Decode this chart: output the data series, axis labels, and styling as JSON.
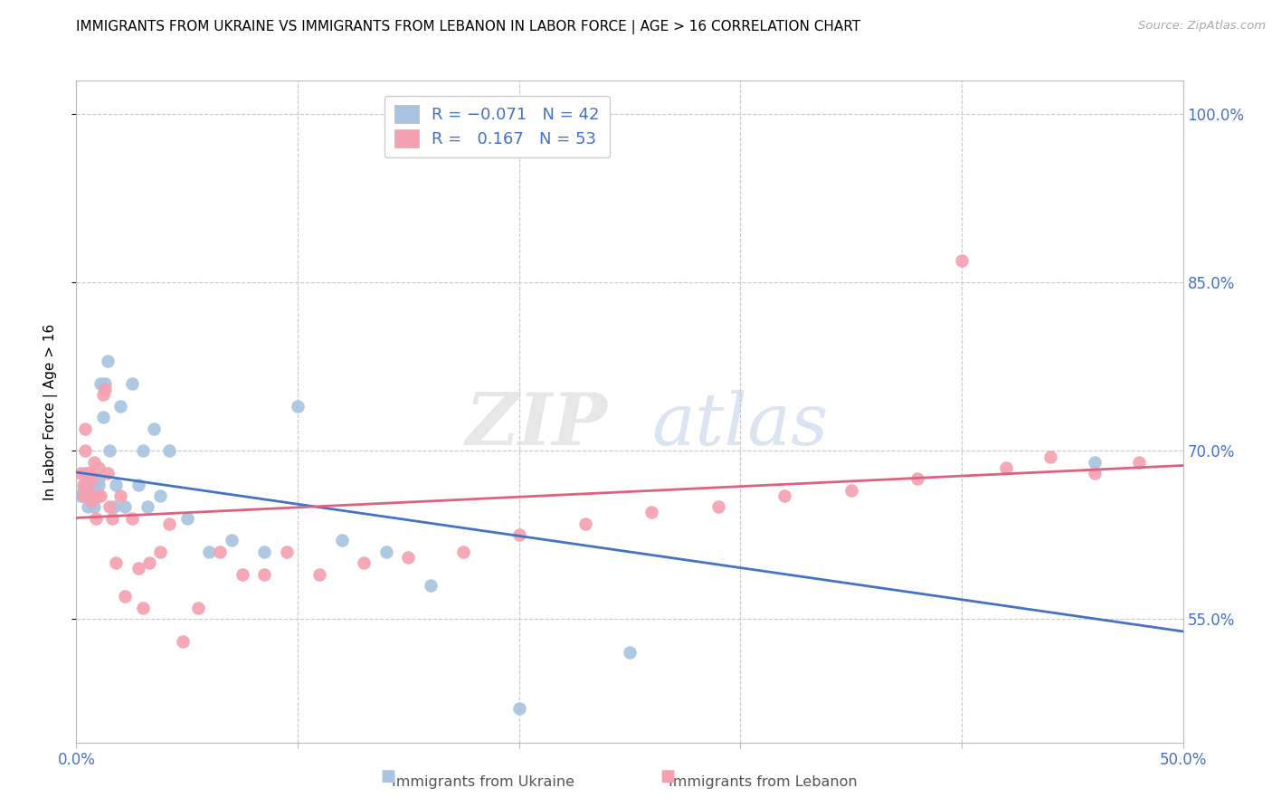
{
  "title": "IMMIGRANTS FROM UKRAINE VS IMMIGRANTS FROM LEBANON IN LABOR FORCE | AGE > 16 CORRELATION CHART",
  "source": "Source: ZipAtlas.com",
  "ylabel": "In Labor Force | Age > 16",
  "x_min": 0.0,
  "x_max": 0.5,
  "y_min": 0.44,
  "y_max": 1.03,
  "x_ticks": [
    0.0,
    0.1,
    0.2,
    0.3,
    0.4,
    0.5
  ],
  "x_tick_labels": [
    "0.0%",
    "",
    "",
    "",
    "",
    "50.0%"
  ],
  "y_ticks": [
    0.55,
    0.7,
    0.85,
    1.0
  ],
  "y_tick_labels": [
    "55.0%",
    "70.0%",
    "85.0%",
    "100.0%"
  ],
  "ukraine_r": -0.071,
  "ukraine_n": 42,
  "lebanon_r": 0.167,
  "lebanon_n": 53,
  "ukraine_color": "#a8c4e0",
  "lebanon_color": "#f4a0b0",
  "ukraine_line_color": "#4472c4",
  "lebanon_line_color": "#e06080",
  "watermark_zip": "ZIP",
  "watermark_atlas": "atlas",
  "background_color": "#ffffff",
  "grid_color": "#c8c8c8",
  "axis_color": "#bbbbbb",
  "tick_label_color": "#4472c4",
  "ukraine_x": [
    0.002,
    0.003,
    0.004,
    0.004,
    0.005,
    0.005,
    0.006,
    0.006,
    0.007,
    0.007,
    0.008,
    0.008,
    0.009,
    0.01,
    0.01,
    0.011,
    0.012,
    0.013,
    0.014,
    0.015,
    0.017,
    0.018,
    0.02,
    0.022,
    0.025,
    0.028,
    0.03,
    0.032,
    0.035,
    0.038,
    0.042,
    0.05,
    0.06,
    0.07,
    0.085,
    0.1,
    0.12,
    0.14,
    0.16,
    0.2,
    0.25,
    0.46
  ],
  "ukraine_y": [
    0.66,
    0.665,
    0.67,
    0.68,
    0.66,
    0.65,
    0.67,
    0.66,
    0.675,
    0.66,
    0.668,
    0.65,
    0.66,
    0.675,
    0.67,
    0.76,
    0.73,
    0.76,
    0.78,
    0.7,
    0.65,
    0.67,
    0.74,
    0.65,
    0.76,
    0.67,
    0.7,
    0.65,
    0.72,
    0.66,
    0.7,
    0.64,
    0.61,
    0.62,
    0.61,
    0.74,
    0.62,
    0.61,
    0.58,
    0.47,
    0.52,
    0.69
  ],
  "lebanon_x": [
    0.002,
    0.003,
    0.003,
    0.004,
    0.004,
    0.005,
    0.005,
    0.006,
    0.006,
    0.007,
    0.007,
    0.008,
    0.008,
    0.009,
    0.01,
    0.01,
    0.011,
    0.012,
    0.013,
    0.014,
    0.015,
    0.016,
    0.018,
    0.02,
    0.022,
    0.025,
    0.028,
    0.03,
    0.033,
    0.038,
    0.042,
    0.048,
    0.055,
    0.065,
    0.075,
    0.085,
    0.095,
    0.11,
    0.13,
    0.15,
    0.175,
    0.2,
    0.23,
    0.26,
    0.29,
    0.32,
    0.35,
    0.38,
    0.4,
    0.42,
    0.44,
    0.46,
    0.48
  ],
  "lebanon_y": [
    0.68,
    0.67,
    0.66,
    0.7,
    0.72,
    0.68,
    0.67,
    0.68,
    0.66,
    0.675,
    0.655,
    0.66,
    0.69,
    0.64,
    0.66,
    0.685,
    0.66,
    0.75,
    0.755,
    0.68,
    0.65,
    0.64,
    0.6,
    0.66,
    0.57,
    0.64,
    0.595,
    0.56,
    0.6,
    0.61,
    0.635,
    0.53,
    0.56,
    0.61,
    0.59,
    0.59,
    0.61,
    0.59,
    0.6,
    0.605,
    0.61,
    0.625,
    0.635,
    0.645,
    0.65,
    0.66,
    0.665,
    0.675,
    0.87,
    0.685,
    0.695,
    0.68,
    0.69
  ]
}
